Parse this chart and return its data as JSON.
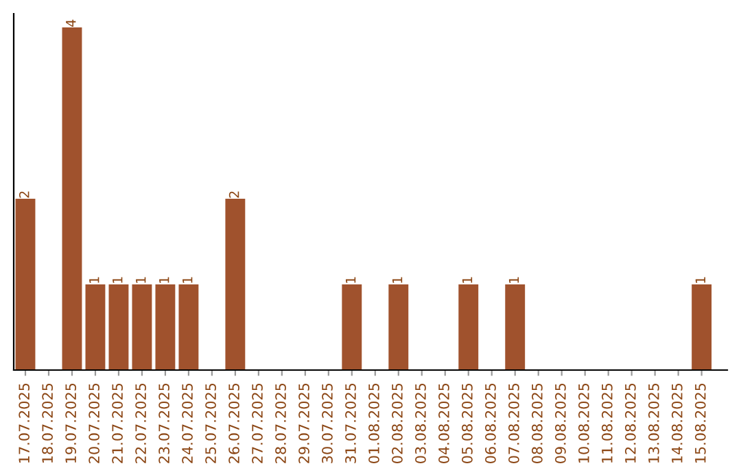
{
  "chart_data": {
    "type": "bar",
    "categories": [
      "17.07.2025",
      "18.07.2025",
      "19.07.2025",
      "20.07.2025",
      "21.07.2025",
      "22.07.2025",
      "23.07.2025",
      "24.07.2025",
      "25.07.2025",
      "26.07.2025",
      "27.07.2025",
      "28.07.2025",
      "29.07.2025",
      "30.07.2025",
      "31.07.2025",
      "01.08.2025",
      "02.08.2025",
      "03.08.2025",
      "04.08.2025",
      "05.08.2025",
      "06.08.2025",
      "07.08.2025",
      "08.08.2025",
      "09.08.2025",
      "10.08.2025",
      "11.08.2025",
      "12.08.2025",
      "13.08.2025",
      "14.08.2025",
      "15.08.2025"
    ],
    "values": [
      2,
      0,
      4,
      1,
      1,
      1,
      1,
      1,
      0,
      2,
      0,
      0,
      0,
      0,
      1,
      0,
      1,
      0,
      0,
      1,
      0,
      1,
      0,
      0,
      0,
      0,
      0,
      0,
      0,
      1
    ],
    "value_labels": [
      "2",
      null,
      "4",
      "1",
      "1",
      "1",
      "1",
      "1",
      null,
      "2",
      null,
      null,
      null,
      null,
      "1",
      null,
      "1",
      null,
      null,
      "1",
      null,
      "1",
      null,
      null,
      null,
      null,
      null,
      null,
      null,
      "1"
    ],
    "color": "#a0522d",
    "grid": false,
    "legend": false
  }
}
